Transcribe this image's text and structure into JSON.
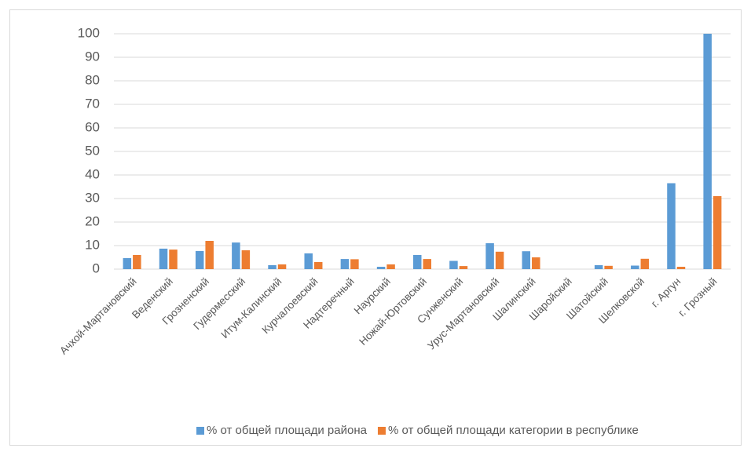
{
  "chart_data": {
    "type": "bar",
    "categories": [
      "Ачхой-Мартановский",
      "Веденский",
      "Грозненский",
      "Гудермесский",
      "Итум-Калинский",
      "Курчалоевский",
      "Надтеречный",
      "Наурский",
      "Ножай-Юртовский",
      "Сунженский",
      "Урус-Мартановский",
      "Шалинский",
      "Шаройский",
      "Шатойский",
      "Шелковской",
      "г. Аргун",
      "г. Грозный"
    ],
    "series": [
      {
        "name": "% от общей площади района",
        "color": "#5b9bd5",
        "values": [
          4.7,
          8.7,
          7.7,
          11.3,
          1.7,
          6.7,
          4.3,
          1,
          6,
          3.5,
          11,
          7.6,
          0,
          1.7,
          1.5,
          36.5,
          100
        ]
      },
      {
        "name": "% от общей площади категории в республике",
        "color": "#ed7d31",
        "values": [
          6,
          8.3,
          12,
          8,
          2,
          3,
          4.2,
          2,
          4.3,
          1.3,
          7.4,
          5,
          0,
          1.4,
          4.4,
          1,
          31
        ]
      }
    ],
    "ylim": [
      0,
      100
    ],
    "yticks": [
      0,
      10,
      20,
      30,
      40,
      50,
      60,
      70,
      80,
      90,
      100
    ],
    "grid": true,
    "legend": "bottom"
  }
}
